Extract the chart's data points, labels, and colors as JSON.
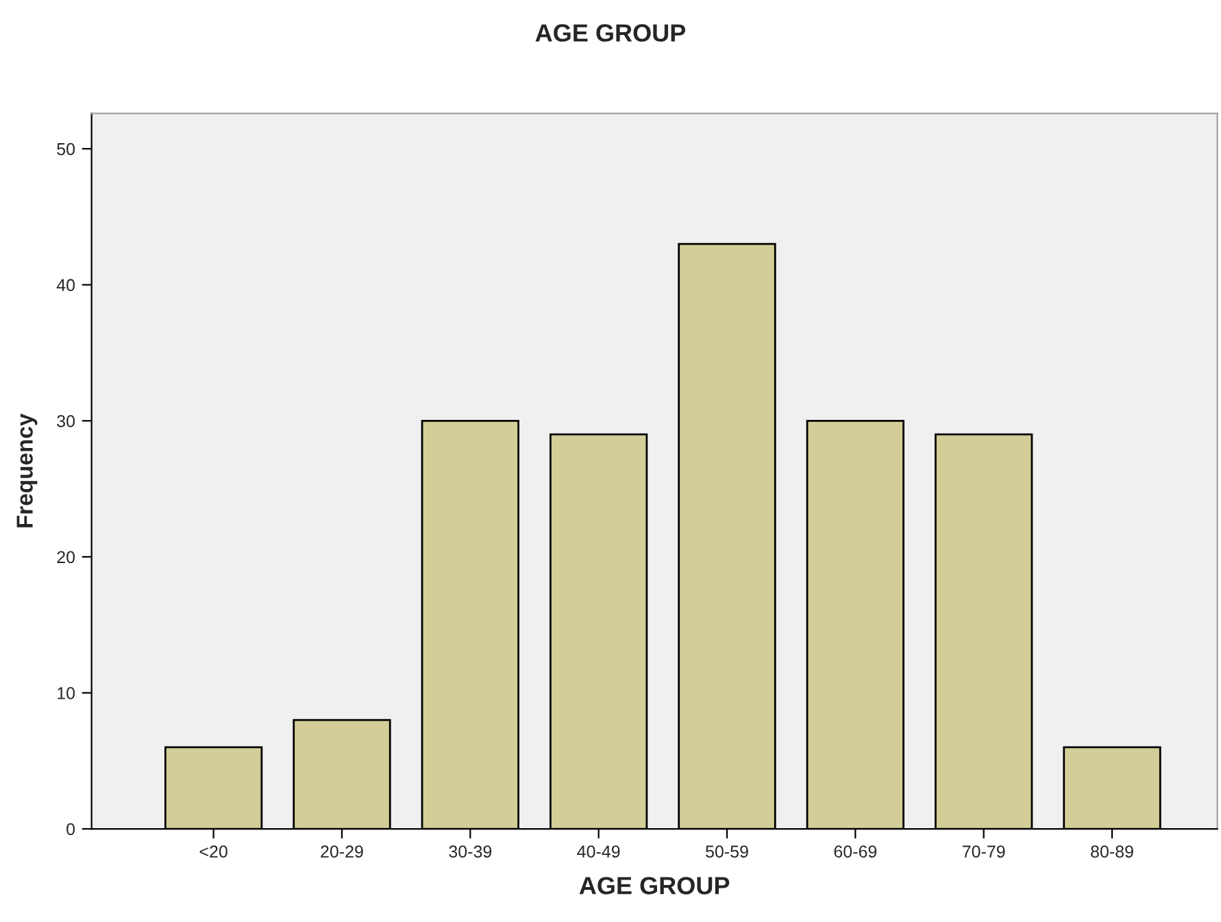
{
  "chart_data": {
    "type": "bar",
    "title": "AGE GROUP",
    "xlabel": "AGE GROUP",
    "ylabel": "Frequency",
    "categories": [
      "<20",
      "20-29",
      "30-39",
      "40-49",
      "50-59",
      "60-69",
      "70-79",
      "80-89"
    ],
    "values": [
      6,
      8,
      30,
      29,
      43,
      30,
      29,
      6
    ],
    "color": "#d3ce97",
    "ylim": [
      0,
      52.6
    ],
    "yticks": [
      0,
      10,
      20,
      30,
      40,
      50
    ],
    "grid": false,
    "legend": false
  }
}
